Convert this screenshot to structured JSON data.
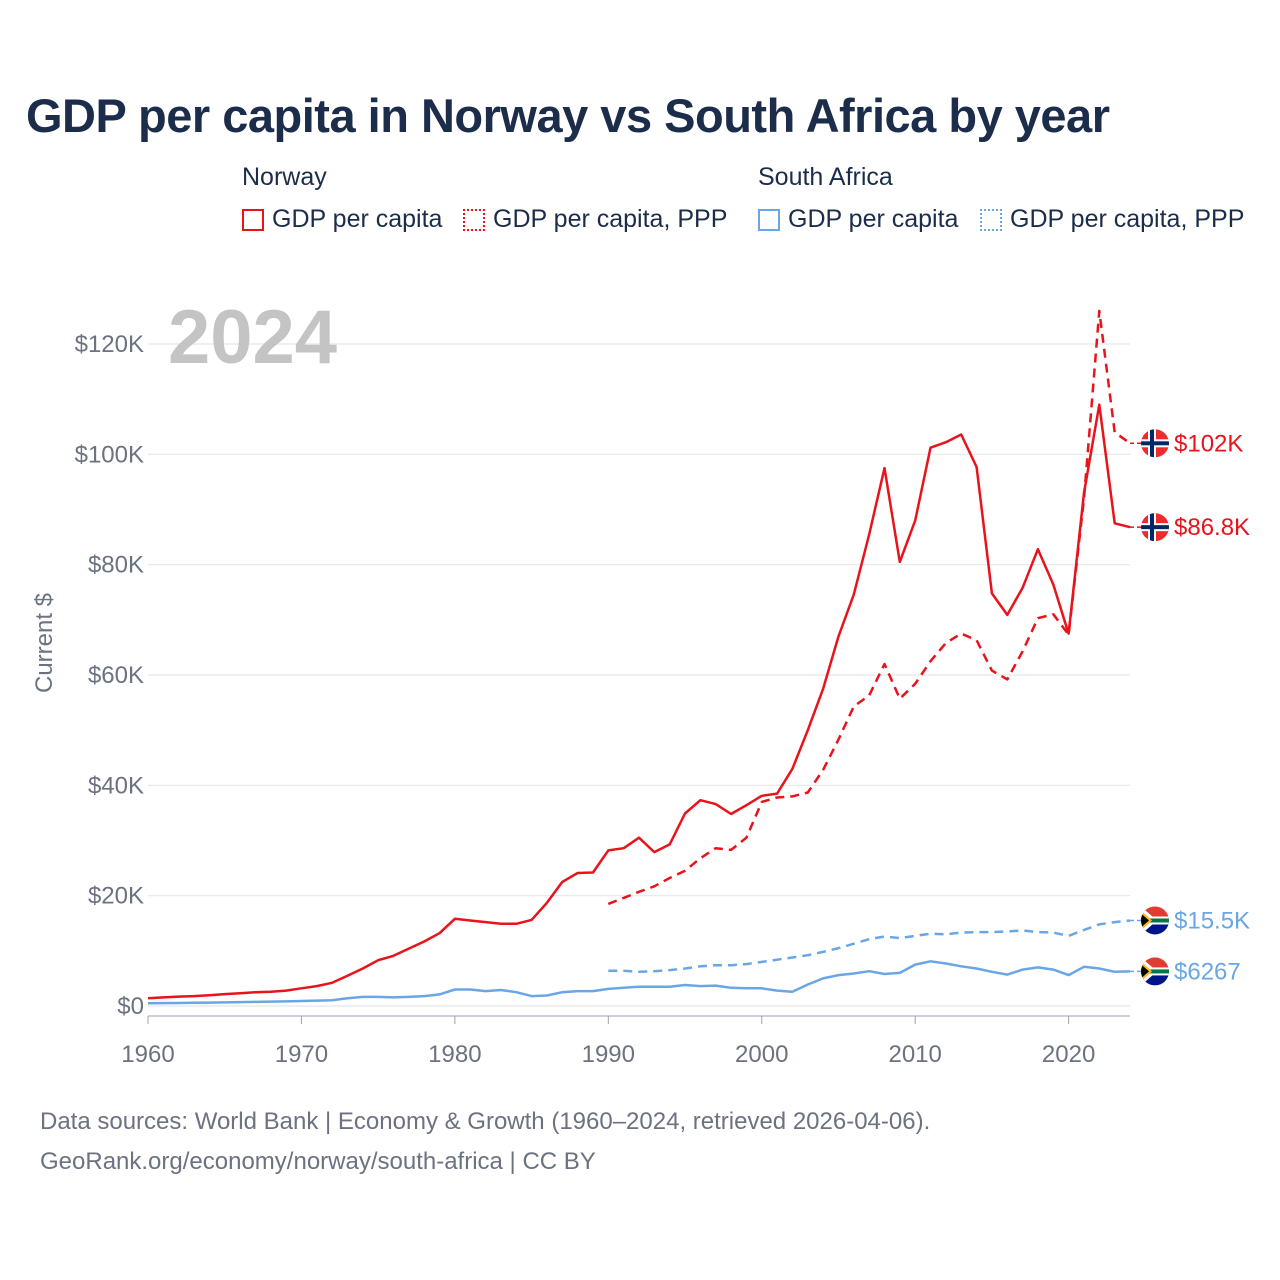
{
  "title": "GDP per capita in Norway vs South Africa by year",
  "legend": {
    "groups": [
      {
        "name": "Norway",
        "items": [
          "GDP per capita",
          "GDP per capita, PPP"
        ]
      },
      {
        "name": "South Africa",
        "items": [
          "GDP per capita",
          "GDP per capita, PPP"
        ]
      }
    ]
  },
  "footer": {
    "line1": "Data sources: World Bank | Economy & Growth (1960–2024, retrieved 2026-04-06).",
    "line2": "GeoRank.org/economy/norway/south-africa | CC BY"
  },
  "colors": {
    "norway": "#e8131b",
    "south_africa": "#6aa6e6",
    "grid": "#e5e7eb",
    "axis_text": "#6b7280",
    "year_watermark": "#c4c4c4"
  },
  "chart_data": {
    "type": "line",
    "year_label": "2024",
    "ylabel": "Current $",
    "xlim": [
      1960,
      2024
    ],
    "ylim": [
      0,
      120000
    ],
    "x_ticks": [
      1960,
      1970,
      1980,
      1990,
      2000,
      2010,
      2020
    ],
    "x_tick_labels": [
      "1960",
      "1970",
      "1980",
      "1990",
      "2000",
      "2010",
      "2020"
    ],
    "y_ticks": [
      0,
      20000,
      40000,
      60000,
      80000,
      100000,
      120000
    ],
    "y_tick_labels": [
      "$0",
      "$20K",
      "$40K",
      "$60K",
      "$80K",
      "$100K",
      "$120K"
    ],
    "series": [
      {
        "name": "Norway GDP per capita",
        "country": "norway",
        "style": "solid",
        "end_label": "$86.8K",
        "x": [
          1960,
          1961,
          1962,
          1963,
          1964,
          1965,
          1966,
          1967,
          1968,
          1969,
          1970,
          1971,
          1972,
          1973,
          1974,
          1975,
          1976,
          1977,
          1978,
          1979,
          1980,
          1981,
          1982,
          1983,
          1984,
          1985,
          1986,
          1987,
          1988,
          1989,
          1990,
          1991,
          1992,
          1993,
          1994,
          1995,
          1996,
          1997,
          1998,
          1999,
          2000,
          2001,
          2002,
          2003,
          2004,
          2005,
          2006,
          2007,
          2008,
          2009,
          2010,
          2011,
          2012,
          2013,
          2014,
          2015,
          2016,
          2017,
          2018,
          2019,
          2020,
          2021,
          2022,
          2023,
          2024
        ],
        "values": [
          1400,
          1560,
          1700,
          1800,
          1950,
          2150,
          2300,
          2500,
          2600,
          2800,
          3200,
          3600,
          4200,
          5500,
          6800,
          8300,
          9100,
          10400,
          11700,
          13200,
          15800,
          15500,
          15200,
          14900,
          14900,
          15600,
          18700,
          22500,
          24100,
          24200,
          28200,
          28600,
          30500,
          27900,
          29300,
          34900,
          37300,
          36600,
          34800,
          36400,
          38100,
          38500,
          43000,
          50000,
          57500,
          67000,
          74600,
          85500,
          97500,
          80500,
          88000,
          101200,
          102200,
          103600,
          97700,
          74800,
          70900,
          75800,
          82800,
          76400,
          67500,
          93000,
          109000,
          87500,
          86800
        ]
      },
      {
        "name": "Norway GDP per capita, PPP",
        "country": "norway",
        "style": "dashed",
        "end_label": "$102K",
        "x": [
          1990,
          1991,
          1992,
          1993,
          1994,
          1995,
          1996,
          1997,
          1998,
          1999,
          2000,
          2001,
          2002,
          2003,
          2004,
          2005,
          2006,
          2007,
          2008,
          2009,
          2010,
          2011,
          2012,
          2013,
          2014,
          2015,
          2016,
          2017,
          2018,
          2019,
          2020,
          2021,
          2022,
          2023,
          2024
        ],
        "values": [
          18500,
          19600,
          20700,
          21700,
          23200,
          24500,
          26800,
          28600,
          28300,
          30500,
          37000,
          37800,
          38000,
          38700,
          42800,
          48300,
          54300,
          56300,
          62000,
          55700,
          58400,
          62500,
          65800,
          67500,
          66300,
          60800,
          59200,
          64300,
          70300,
          71000,
          67300,
          92000,
          126000,
          104000,
          102000
        ]
      },
      {
        "name": "South Africa GDP per capita",
        "country": "south_africa",
        "style": "solid",
        "end_label": "$6267",
        "x": [
          1960,
          1961,
          1962,
          1963,
          1964,
          1965,
          1966,
          1967,
          1968,
          1969,
          1970,
          1971,
          1972,
          1973,
          1974,
          1975,
          1976,
          1977,
          1978,
          1979,
          1980,
          1981,
          1982,
          1983,
          1984,
          1985,
          1986,
          1987,
          1988,
          1989,
          1990,
          1991,
          1992,
          1993,
          1994,
          1995,
          1996,
          1997,
          1998,
          1999,
          2000,
          2001,
          2002,
          2003,
          2004,
          2005,
          2006,
          2007,
          2008,
          2009,
          2010,
          2011,
          2012,
          2013,
          2014,
          2015,
          2016,
          2017,
          2018,
          2019,
          2020,
          2021,
          2022,
          2023,
          2024
        ],
        "values": [
          500,
          520,
          540,
          580,
          620,
          660,
          700,
          750,
          790,
          840,
          900,
          970,
          1050,
          1400,
          1650,
          1650,
          1550,
          1650,
          1800,
          2100,
          3000,
          3000,
          2700,
          2900,
          2500,
          1800,
          1900,
          2500,
          2700,
          2700,
          3100,
          3300,
          3500,
          3500,
          3500,
          3800,
          3600,
          3700,
          3300,
          3200,
          3200,
          2800,
          2600,
          3900,
          5000,
          5600,
          5900,
          6300,
          5800,
          6000,
          7500,
          8100,
          7700,
          7200,
          6800,
          6200,
          5700,
          6600,
          7000,
          6600,
          5600,
          7100,
          6800,
          6200,
          6267
        ]
      },
      {
        "name": "South Africa GDP per capita, PPP",
        "country": "south_africa",
        "style": "dashed",
        "end_label": "$15.5K",
        "x": [
          1990,
          1991,
          1992,
          1993,
          1994,
          1995,
          1996,
          1997,
          1998,
          1999,
          2000,
          2001,
          2002,
          2003,
          2004,
          2005,
          2006,
          2007,
          2008,
          2009,
          2010,
          2011,
          2012,
          2013,
          2014,
          2015,
          2016,
          2017,
          2018,
          2019,
          2020,
          2021,
          2022,
          2023,
          2024
        ],
        "values": [
          6400,
          6400,
          6200,
          6300,
          6500,
          6800,
          7200,
          7400,
          7400,
          7600,
          8000,
          8400,
          8800,
          9200,
          9800,
          10500,
          11300,
          12100,
          12600,
          12300,
          12700,
          13100,
          13000,
          13300,
          13400,
          13400,
          13500,
          13700,
          13400,
          13300,
          12700,
          13800,
          14800,
          15200,
          15500
        ]
      }
    ]
  }
}
